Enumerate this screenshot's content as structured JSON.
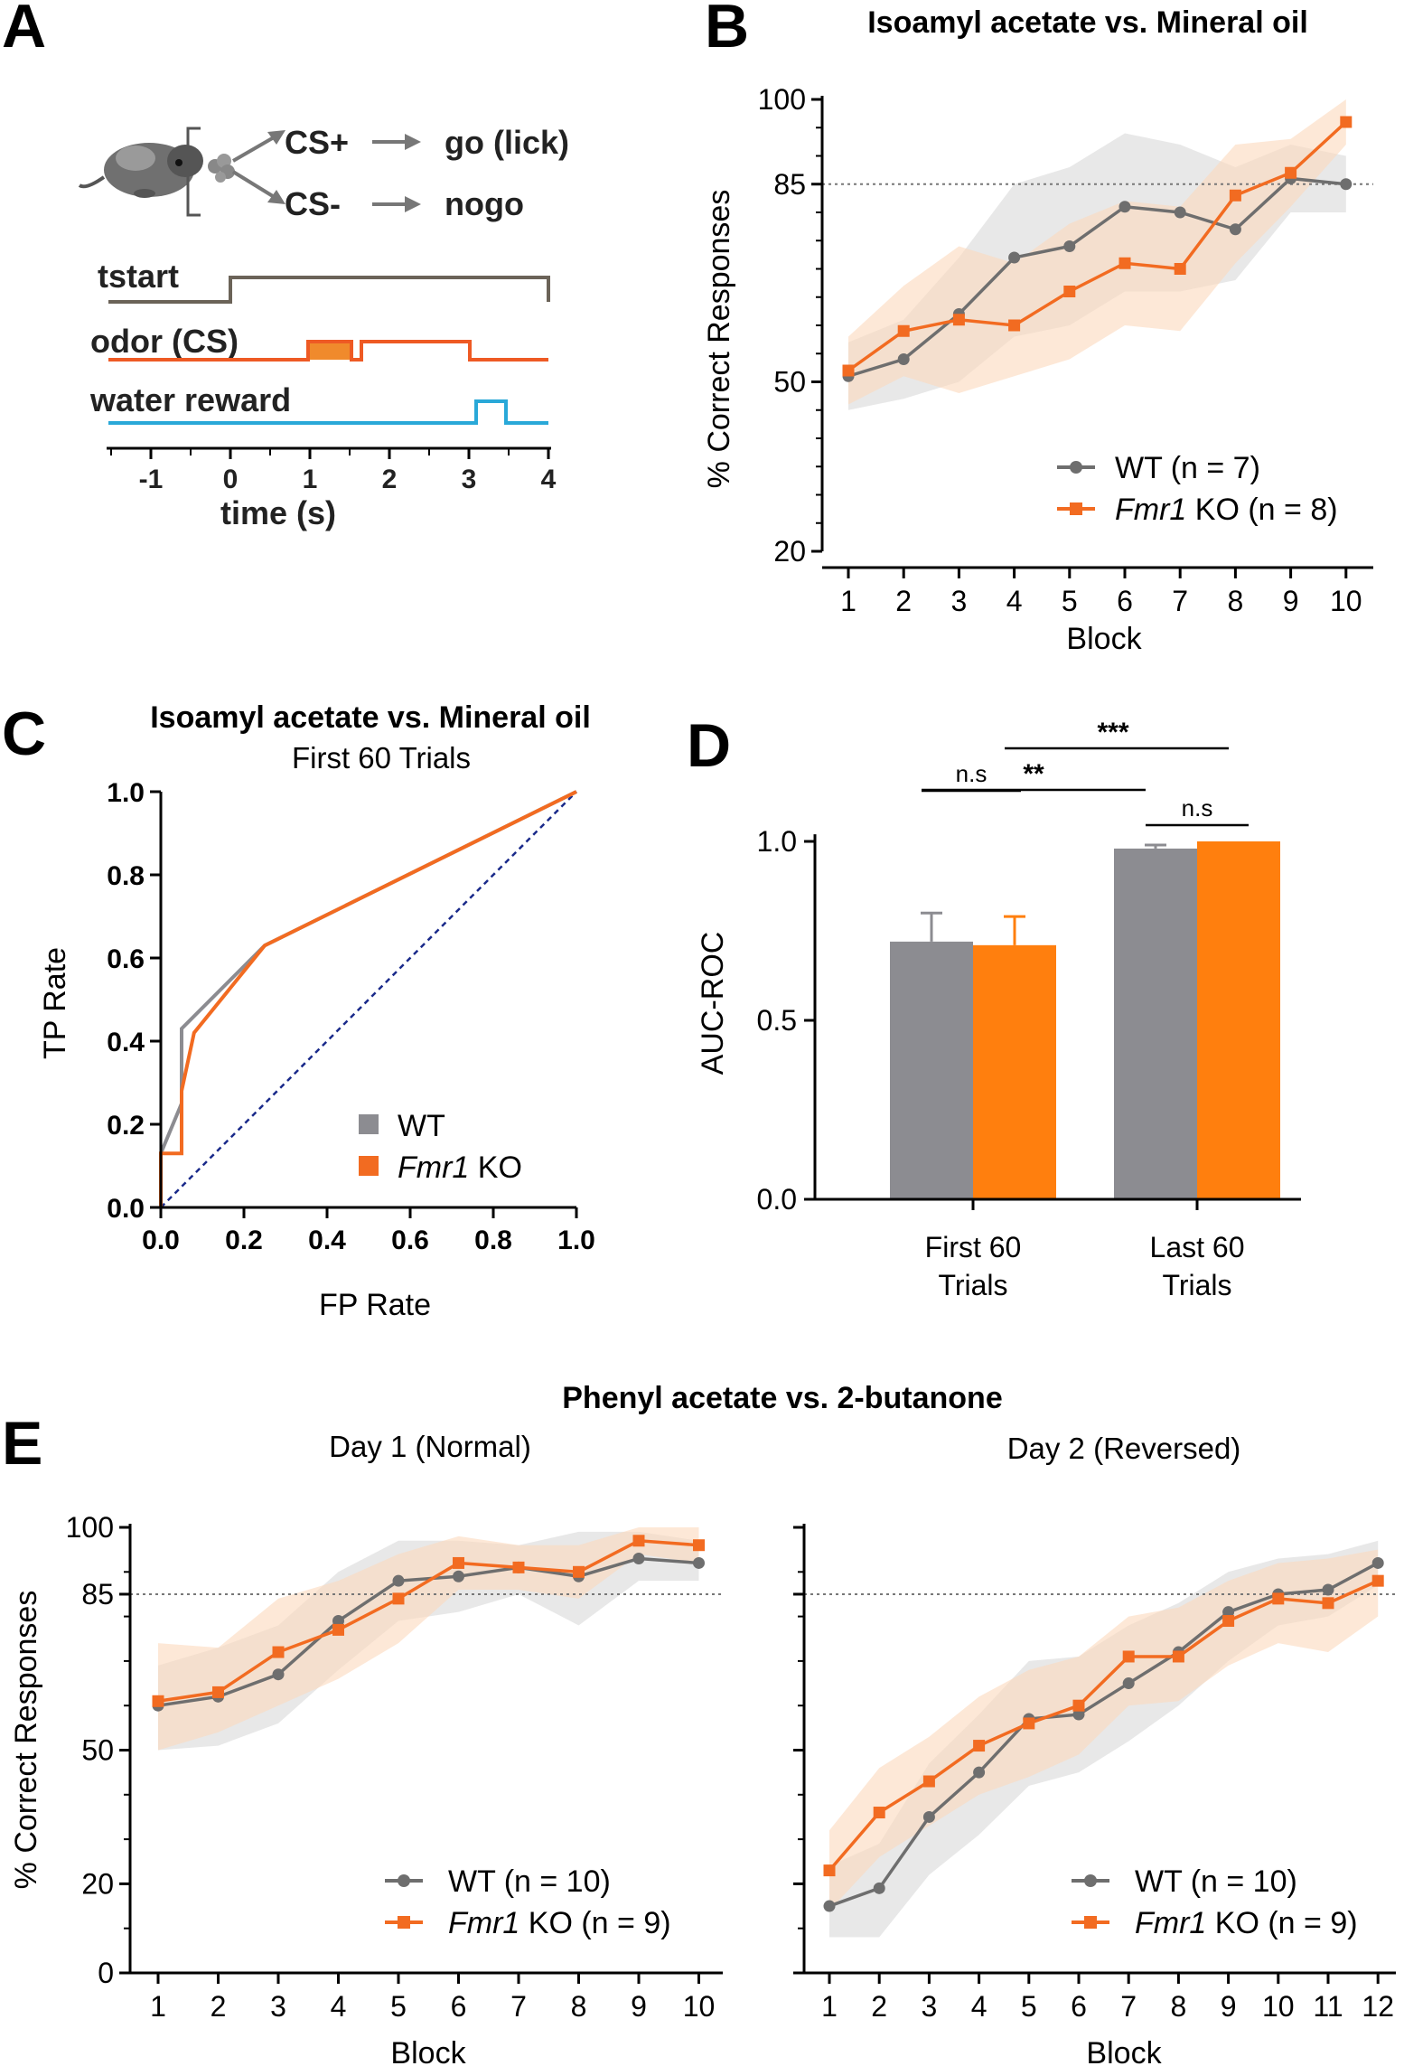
{
  "panels": {
    "A": "A",
    "B": "B",
    "C": "C",
    "D": "D",
    "E": "E"
  },
  "colors": {
    "wt": "#6e6e6e",
    "ko": "#f26b21",
    "wt_band": "#d9d9d9",
    "ko_band": "#fbd9bd",
    "water": "#29a8d8",
    "tstart": "#6b6358",
    "diagonal": "#1a2a8a",
    "bar_wt": "#8c8c91",
    "bar_ko": "#ff7f0e"
  },
  "schematic": {
    "cs_plus": "CS+",
    "cs_minus": "CS-",
    "go": "go (lick)",
    "nogo": "nogo",
    "tstart": "tstart",
    "odor": "odor (CS)",
    "water": "water reward",
    "xlabel": "time (s)",
    "ticks": [
      -1,
      0,
      1,
      2,
      3,
      4
    ]
  },
  "chart_data": [
    {
      "id": "B",
      "type": "line",
      "title": "Isoamyl acetate vs. Mineral oil",
      "xlabel": "Block",
      "ylabel": "% Correct Responses",
      "categories": [
        1,
        2,
        3,
        4,
        5,
        6,
        7,
        8,
        9,
        10
      ],
      "yticks": [
        20,
        50,
        85,
        100
      ],
      "ylim": [
        20,
        100
      ],
      "threshold": 85,
      "series": [
        {
          "name": "WT (n = 7)",
          "values": [
            51,
            54,
            62,
            72,
            74,
            81,
            80,
            77,
            86,
            85
          ],
          "lower": [
            45,
            47,
            50,
            58,
            60,
            66,
            66,
            68,
            80,
            80
          ],
          "upper": [
            57,
            61,
            72,
            85,
            88,
            94,
            92,
            88,
            92,
            90
          ]
        },
        {
          "name": "Fmr1 KO (n = 8)",
          "values": [
            52,
            59,
            61,
            60,
            66,
            71,
            70,
            83,
            87,
            96
          ],
          "lower": [
            46,
            51,
            48,
            51,
            54,
            60,
            59,
            71,
            81,
            92
          ],
          "upper": [
            58,
            67,
            74,
            71,
            78,
            82,
            81,
            92,
            93,
            100
          ]
        }
      ],
      "legend": {
        "wt": "WT (n = 7)",
        "ko_italic": "Fmr1",
        "ko_rest": " KO (n = 8)"
      }
    },
    {
      "id": "C",
      "type": "line",
      "title": "Isoamyl acetate vs. Mineral oil",
      "subtitle": "First 60 Trials",
      "xlabel": "FP Rate",
      "ylabel": "TP Rate",
      "xticks": [
        0.0,
        0.2,
        0.4,
        0.6,
        0.8,
        1.0
      ],
      "yticks": [
        0.0,
        0.2,
        0.4,
        0.6,
        0.8,
        1.0
      ],
      "series": [
        {
          "name": "WT",
          "x": [
            0,
            0,
            0.05,
            0.05,
            0.25,
            1.0
          ],
          "y": [
            0,
            0.13,
            0.25,
            0.43,
            0.63,
            1.0
          ]
        },
        {
          "name": "Fmr1 KO",
          "x": [
            0,
            0,
            0.05,
            0.05,
            0.08,
            0.25,
            1.0
          ],
          "y": [
            0,
            0.13,
            0.13,
            0.28,
            0.42,
            0.63,
            1.0
          ]
        }
      ],
      "legend": {
        "wt": "WT",
        "ko_italic": "Fmr1",
        "ko_rest": " KO"
      }
    },
    {
      "id": "D",
      "type": "bar",
      "ylabel": "AUC-ROC",
      "categories": [
        "First 60 Trials",
        "Last 60 Trials"
      ],
      "category_lines": [
        [
          "First 60",
          "Trials"
        ],
        [
          "Last 60",
          "Trials"
        ]
      ],
      "yticks": [
        0.0,
        0.5,
        1.0
      ],
      "ylim": [
        0,
        1.0
      ],
      "series": [
        {
          "name": "WT",
          "values": [
            0.72,
            0.98
          ],
          "errors": [
            0.08,
            0.01
          ]
        },
        {
          "name": "Fmr1 KO",
          "values": [
            0.71,
            1.0
          ],
          "errors": [
            0.08,
            0.0
          ]
        }
      ],
      "annotations": {
        "ns1": "n.s",
        "ns2": "n.s",
        "star2": "**",
        "star3": "***"
      }
    },
    {
      "id": "E1",
      "type": "line",
      "title": "Phenyl acetate vs. 2-butanone",
      "subtitle": "Day 1 (Normal)",
      "xlabel": "Block",
      "ylabel": "% Correct Responses",
      "categories": [
        1,
        2,
        3,
        4,
        5,
        6,
        7,
        8,
        9,
        10
      ],
      "yticks": [
        0,
        20,
        50,
        85,
        100
      ],
      "ylim": [
        0,
        100
      ],
      "threshold": 85,
      "series": [
        {
          "name": "WT (n = 10)",
          "values": [
            60,
            62,
            67,
            79,
            88,
            89,
            91,
            89,
            93,
            92
          ],
          "lower": [
            50,
            51,
            56,
            68,
            79,
            81,
            85,
            78,
            88,
            88
          ],
          "upper": [
            69,
            73,
            78,
            90,
            97,
            97,
            96,
            99,
            99,
            97
          ]
        },
        {
          "name": "Fmr1 KO (n = 9)",
          "values": [
            61,
            63,
            72,
            77,
            84,
            92,
            91,
            90,
            97,
            96
          ],
          "lower": [
            50,
            54,
            60,
            66,
            74,
            86,
            86,
            84,
            94,
            92
          ],
          "upper": [
            74,
            73,
            84,
            88,
            94,
            98,
            96,
            96,
            100,
            100
          ]
        }
      ],
      "legend": {
        "wt": "WT (n = 10)",
        "ko_italic": "Fmr1",
        "ko_rest": " KO (n = 9)"
      }
    },
    {
      "id": "E2",
      "type": "line",
      "subtitle": "Day 2 (Reversed)",
      "xlabel": "Block",
      "categories": [
        1,
        2,
        3,
        4,
        5,
        6,
        7,
        8,
        9,
        10,
        11,
        12
      ],
      "ylim": [
        0,
        100
      ],
      "threshold": 85,
      "series": [
        {
          "name": "WT (n = 10)",
          "values": [
            15,
            19,
            35,
            45,
            57,
            58,
            65,
            72,
            81,
            85,
            86,
            92
          ],
          "lower": [
            8,
            8,
            22,
            31,
            42,
            45,
            52,
            60,
            70,
            78,
            80,
            87
          ],
          "upper": [
            24,
            29,
            47,
            58,
            70,
            71,
            78,
            83,
            90,
            93,
            94,
            97
          ]
        },
        {
          "name": "Fmr1 KO (n = 9)",
          "values": [
            23,
            36,
            43,
            51,
            56,
            60,
            71,
            71,
            79,
            84,
            83,
            88
          ],
          "lower": [
            14,
            26,
            33,
            40,
            44,
            49,
            60,
            61,
            69,
            74,
            72,
            80
          ],
          "upper": [
            32,
            46,
            53,
            62,
            68,
            71,
            80,
            82,
            88,
            92,
            93,
            95
          ]
        }
      ],
      "legend": {
        "wt": "WT (n = 10)",
        "ko_italic": "Fmr1",
        "ko_rest": " KO (n = 9)"
      }
    }
  ]
}
